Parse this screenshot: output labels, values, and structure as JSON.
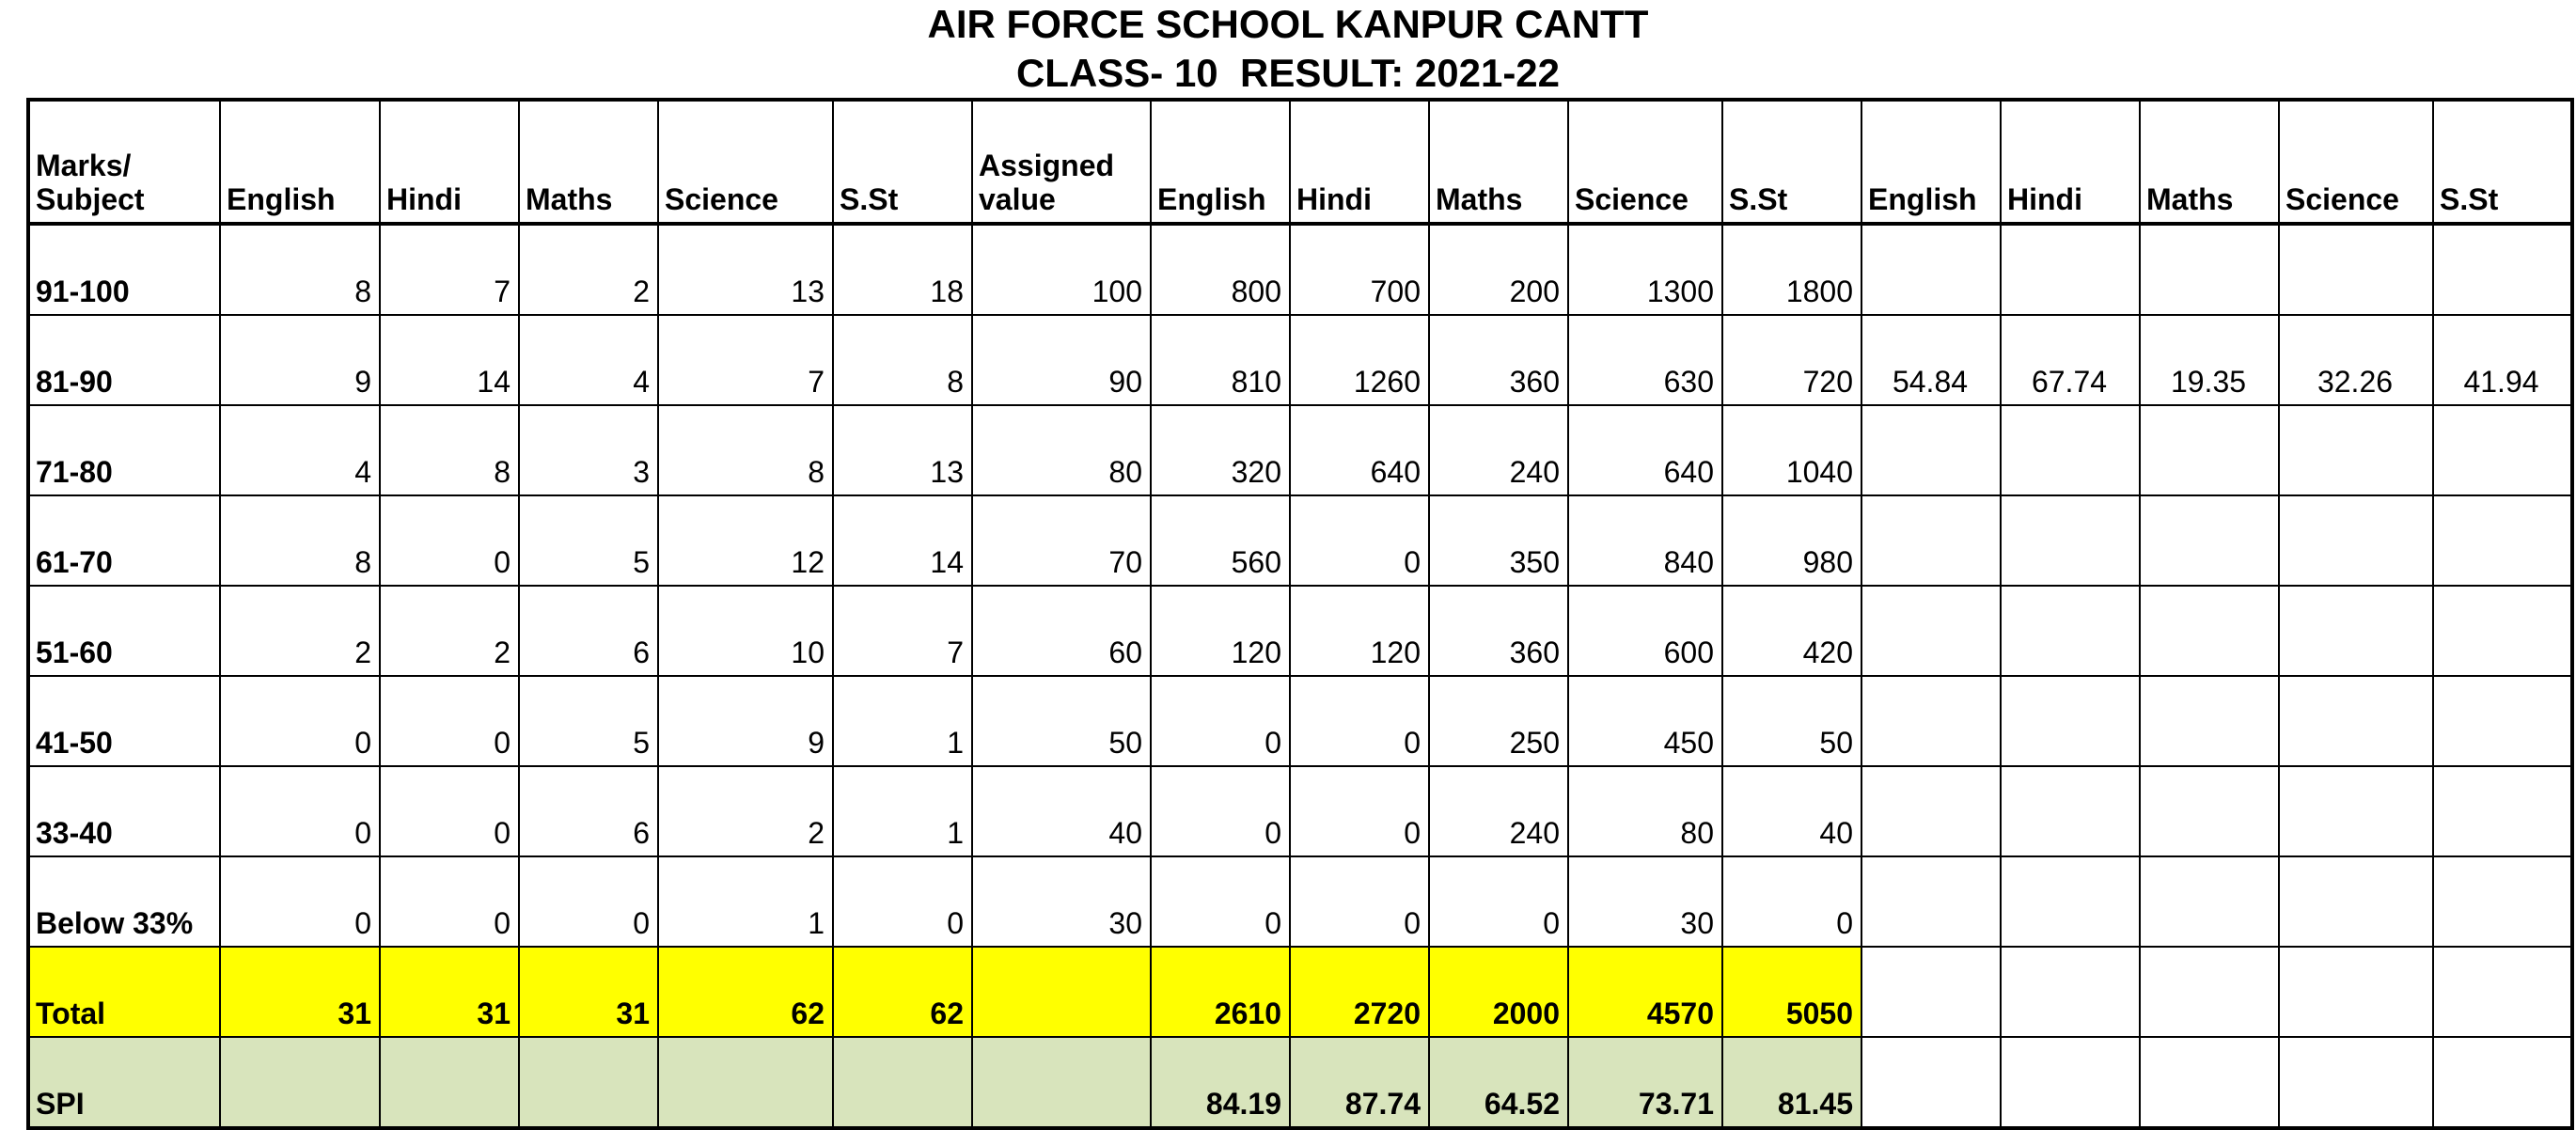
{
  "header": {
    "title": "AIR FORCE SCHOOL KANPUR CANTT",
    "subtitle": "CLASS- 10  RESULT: 2021-22"
  },
  "colors": {
    "total_row": "#ffff00",
    "spi_row": "#d8e4bc"
  },
  "table": {
    "columns": [
      "Marks/\nSubject",
      "English",
      "Hindi",
      "Maths",
      "Science",
      "S.St",
      "Assigned\nvalue",
      "English",
      "Hindi",
      "Maths",
      "Science",
      "S.St",
      "English",
      "Hindi",
      "Maths",
      "Science",
      "S.St"
    ],
    "rows": [
      {
        "label": "91-100",
        "counts": [
          "8",
          "7",
          "2",
          "13",
          "18"
        ],
        "assigned": "100",
        "products": [
          "800",
          "700",
          "200",
          "1300",
          "1800"
        ],
        "pct": [
          "",
          "",
          "",
          "",
          ""
        ]
      },
      {
        "label": "81-90",
        "counts": [
          "9",
          "14",
          "4",
          "7",
          "8"
        ],
        "assigned": "90",
        "products": [
          "810",
          "1260",
          "360",
          "630",
          "720"
        ],
        "pct": [
          "54.84",
          "67.74",
          "19.35",
          "32.26",
          "41.94"
        ]
      },
      {
        "label": "71-80",
        "counts": [
          "4",
          "8",
          "3",
          "8",
          "13"
        ],
        "assigned": "80",
        "products": [
          "320",
          "640",
          "240",
          "640",
          "1040"
        ],
        "pct": [
          "",
          "",
          "",
          "",
          ""
        ]
      },
      {
        "label": "61-70",
        "counts": [
          "8",
          "0",
          "5",
          "12",
          "14"
        ],
        "assigned": "70",
        "products": [
          "560",
          "0",
          "350",
          "840",
          "980"
        ],
        "pct": [
          "",
          "",
          "",
          "",
          ""
        ]
      },
      {
        "label": "51-60",
        "counts": [
          "2",
          "2",
          "6",
          "10",
          "7"
        ],
        "assigned": "60",
        "products": [
          "120",
          "120",
          "360",
          "600",
          "420"
        ],
        "pct": [
          "",
          "",
          "",
          "",
          ""
        ]
      },
      {
        "label": "41-50",
        "counts": [
          "0",
          "0",
          "5",
          "9",
          "1"
        ],
        "assigned": "50",
        "products": [
          "0",
          "0",
          "250",
          "450",
          "50"
        ],
        "pct": [
          "",
          "",
          "",
          "",
          ""
        ]
      },
      {
        "label": "33-40",
        "counts": [
          "0",
          "0",
          "6",
          "2",
          "1"
        ],
        "assigned": "40",
        "products": [
          "0",
          "0",
          "240",
          "80",
          "40"
        ],
        "pct": [
          "",
          "",
          "",
          "",
          ""
        ]
      },
      {
        "label": "Below 33%",
        "counts": [
          "0",
          "0",
          "0",
          "1",
          "0"
        ],
        "assigned": "30",
        "products": [
          "0",
          "0",
          "0",
          "30",
          "0"
        ],
        "pct": [
          "",
          "",
          "",
          "",
          ""
        ]
      }
    ],
    "total": {
      "label": "Total",
      "counts": [
        "31",
        "31",
        "31",
        "62",
        "62"
      ],
      "assigned": "",
      "products": [
        "2610",
        "2720",
        "2000",
        "4570",
        "5050"
      ],
      "pct": [
        "",
        "",
        "",
        "",
        ""
      ]
    },
    "spi": {
      "label": "SPI",
      "counts": [
        "",
        "",
        "",
        "",
        ""
      ],
      "assigned": "",
      "products": [
        "84.19",
        "87.74",
        "64.52",
        "73.71",
        "81.45"
      ],
      "pct": [
        "",
        "",
        "",
        "",
        ""
      ]
    }
  }
}
